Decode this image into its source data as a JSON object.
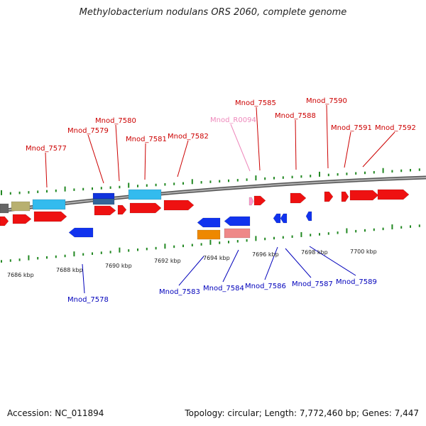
{
  "title": "Methylobacterium nodulans ORS 2060, complete genome",
  "accession": "Accession: NC_011894",
  "summary": "Topology: circular; Length: 7,772,460 bp; Genes: 7,447",
  "colors": {
    "plus_label": "#cc0000",
    "minus_label": "#0000bb",
    "rna_label": "#ee88bb",
    "tick": "#228822",
    "backbone": "#808080"
  },
  "top_labels": [
    {
      "text": "Mnod_7577",
      "kind": "gene"
    },
    {
      "text": "Mnod_7579",
      "kind": "gene"
    },
    {
      "text": "Mnod_7580",
      "kind": "gene"
    },
    {
      "text": "Mnod_7581",
      "kind": "gene"
    },
    {
      "text": "Mnod_7582",
      "kind": "gene"
    },
    {
      "text": "Mnod_R0094",
      "kind": "rna"
    },
    {
      "text": "Mnod_7585",
      "kind": "gene"
    },
    {
      "text": "Mnod_7588",
      "kind": "gene"
    },
    {
      "text": "Mnod_7590",
      "kind": "gene"
    },
    {
      "text": "Mnod_7591",
      "kind": "gene"
    },
    {
      "text": "Mnod_7592",
      "kind": "gene"
    }
  ],
  "bottom_labels": [
    {
      "text": "Mnod_7578"
    },
    {
      "text": "Mnod_7583"
    },
    {
      "text": "Mnod_7584"
    },
    {
      "text": "Mnod_7586"
    },
    {
      "text": "Mnod_7587"
    },
    {
      "text": "Mnod_7589"
    }
  ],
  "kbp_labels": [
    "7686 kbp",
    "7688 kbp",
    "7690 kbp",
    "7692 kbp",
    "7694 kbp",
    "7696 kbp",
    "7698 kbp",
    "7700 kbp"
  ]
}
